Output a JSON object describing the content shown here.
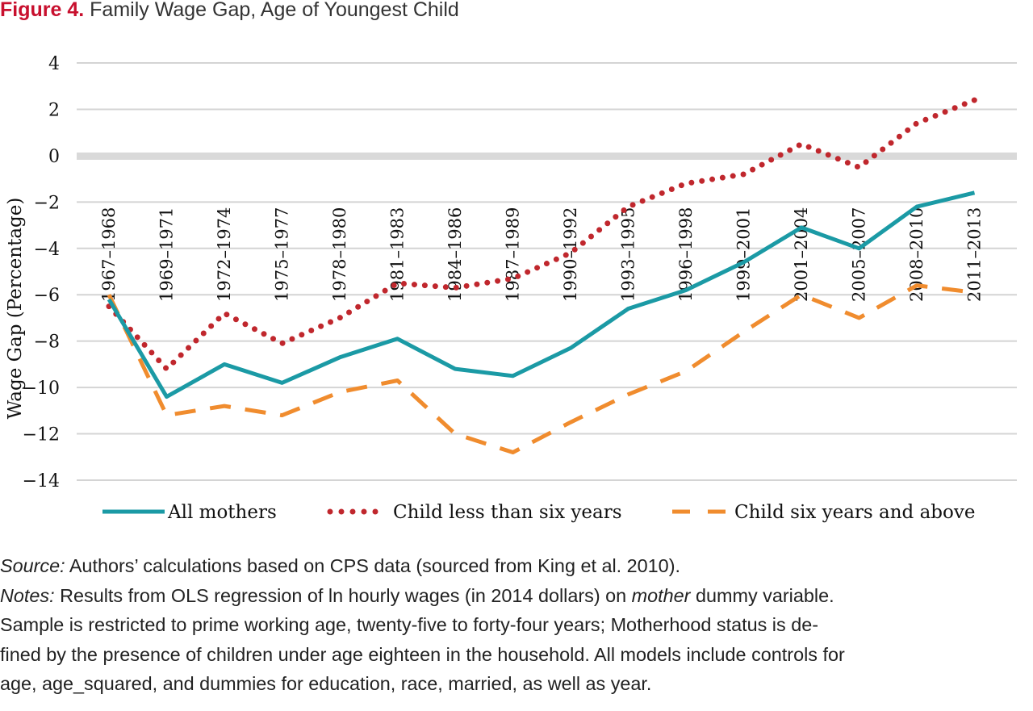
{
  "figure": {
    "label": "Figure 4.",
    "title": "Family Wage Gap, Age of Youngest Child"
  },
  "colors": {
    "figure_label": "#c8102e",
    "all_mothers": "#1b9aa5",
    "child_lt_six": "#c0272d",
    "child_six_above": "#f08c2e",
    "zero_band": "#d9d9d9",
    "gridline": "#d4d4d4"
  },
  "chart_data": {
    "type": "line",
    "title": "",
    "xlabel": "",
    "ylabel": "Wage Gap (Percentage)",
    "ylim": [
      -14,
      4
    ],
    "yticks": [
      4,
      2,
      0,
      -2,
      -4,
      -6,
      -8,
      -10,
      -12,
      -14
    ],
    "grid": true,
    "legend_position": "bottom",
    "categories": [
      "1967–1968",
      "1969–1971",
      "1972–1974",
      "1975–1977",
      "1978–1980",
      "1981–1983",
      "1984–1986",
      "1987–1989",
      "1990–1992",
      "1993–1995",
      "1996–1998",
      "1999–2001",
      "2001–2004",
      "2005–2007",
      "2008–2010",
      "2011–2013"
    ],
    "series": [
      {
        "name": "All mothers",
        "style": "solid",
        "color": "#1b9aa5",
        "values": [
          -6.2,
          -10.4,
          -9.0,
          -9.8,
          -8.7,
          -7.9,
          -9.2,
          -9.5,
          -8.3,
          -6.6,
          -5.8,
          -4.6,
          -3.1,
          -4.0,
          -2.2,
          -1.6
        ]
      },
      {
        "name": "Child less than six years",
        "style": "dotted",
        "color": "#c0272d",
        "values": [
          -6.5,
          -9.2,
          -6.8,
          -8.1,
          -7.0,
          -5.5,
          -5.7,
          -5.3,
          -4.2,
          -2.2,
          -1.2,
          -0.8,
          0.5,
          -0.5,
          1.4,
          2.4
        ]
      },
      {
        "name": "Child six years and above",
        "style": "dashed",
        "color": "#f08c2e",
        "values": [
          -6.0,
          -11.2,
          -10.8,
          -11.2,
          -10.2,
          -9.7,
          -12.0,
          -12.8,
          -11.5,
          -10.3,
          -9.3,
          -7.6,
          -6.0,
          -7.0,
          -5.6,
          -5.9
        ]
      }
    ]
  },
  "notes": {
    "source_label": "Source:",
    "source_text": " Authors’ calculations based on CPS data (sourced from King et al. 2010).",
    "notes_label": "Notes:",
    "notes_text_1": " Results from OLS regression of ln hourly wages (in 2014 dollars) on ",
    "notes_italic": "mother",
    "notes_text_2": " dummy variable.",
    "line_3": "Sample is restricted to prime working age, twenty-five to forty-four years; Motherhood status is de-",
    "line_4": "fined by the presence of children under age eighteen in the household. All models include controls for",
    "line_5": "age, age_squared, and dummies for education, race, married, as well as year."
  }
}
